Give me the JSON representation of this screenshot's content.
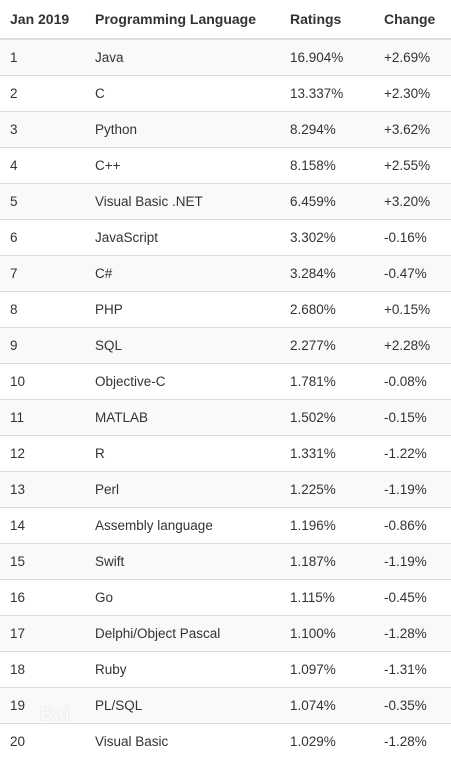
{
  "table": {
    "headers": {
      "rank": "Jan 2019",
      "language": "Programming Language",
      "ratings": "Ratings",
      "change": "Change"
    },
    "rows": [
      {
        "rank": "1",
        "language": "Java",
        "ratings": "16.904%",
        "change": "+2.69%"
      },
      {
        "rank": "2",
        "language": "C",
        "ratings": "13.337%",
        "change": "+2.30%"
      },
      {
        "rank": "3",
        "language": "Python",
        "ratings": "8.294%",
        "change": "+3.62%"
      },
      {
        "rank": "4",
        "language": "C++",
        "ratings": "8.158%",
        "change": "+2.55%"
      },
      {
        "rank": "5",
        "language": "Visual Basic .NET",
        "ratings": "6.459%",
        "change": "+3.20%"
      },
      {
        "rank": "6",
        "language": "JavaScript",
        "ratings": "3.302%",
        "change": "-0.16%"
      },
      {
        "rank": "7",
        "language": "C#",
        "ratings": "3.284%",
        "change": "-0.47%"
      },
      {
        "rank": "8",
        "language": "PHP",
        "ratings": "2.680%",
        "change": "+0.15%"
      },
      {
        "rank": "9",
        "language": "SQL",
        "ratings": "2.277%",
        "change": "+2.28%"
      },
      {
        "rank": "10",
        "language": "Objective-C",
        "ratings": "1.781%",
        "change": "-0.08%"
      },
      {
        "rank": "11",
        "language": "MATLAB",
        "ratings": "1.502%",
        "change": "-0.15%"
      },
      {
        "rank": "12",
        "language": "R",
        "ratings": "1.331%",
        "change": "-1.22%"
      },
      {
        "rank": "13",
        "language": "Perl",
        "ratings": "1.225%",
        "change": "-1.19%"
      },
      {
        "rank": "14",
        "language": "Assembly language",
        "ratings": "1.196%",
        "change": "-0.86%"
      },
      {
        "rank": "15",
        "language": "Swift",
        "ratings": "1.187%",
        "change": "-1.19%"
      },
      {
        "rank": "16",
        "language": "Go",
        "ratings": "1.115%",
        "change": "-0.45%"
      },
      {
        "rank": "17",
        "language": "Delphi/Object Pascal",
        "ratings": "1.100%",
        "change": "-1.28%"
      },
      {
        "rank": "18",
        "language": "Ruby",
        "ratings": "1.097%",
        "change": "-1.31%"
      },
      {
        "rank": "19",
        "language": "PL/SQL",
        "ratings": "1.074%",
        "change": "-0.35%"
      },
      {
        "rank": "20",
        "language": "Visual Basic",
        "ratings": "1.029%",
        "change": "-1.28%"
      }
    ]
  },
  "watermark": {
    "text": "Bai"
  }
}
